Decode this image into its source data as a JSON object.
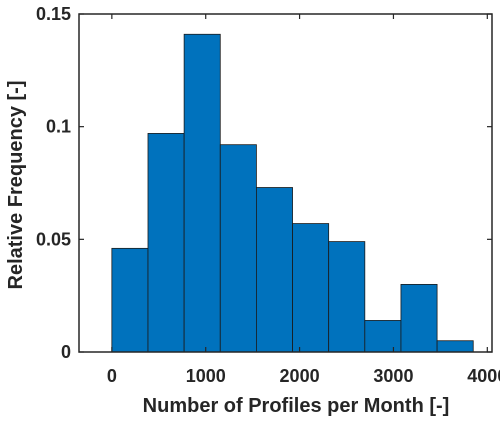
{
  "chart_data": {
    "type": "bar",
    "subtype": "histogram",
    "title": "",
    "xlabel": "Number of Profiles per Month [-]",
    "ylabel": "Relative Frequency [-]",
    "xlim": [
      -350,
      4050
    ],
    "ylim": [
      0,
      0.15
    ],
    "xticks": [
      0,
      1000,
      2000,
      3000,
      4000
    ],
    "xtick_labels": [
      "0",
      "1000",
      "2000",
      "3000",
      "4000"
    ],
    "yticks": [
      0,
      0.05,
      0.1,
      0.15
    ],
    "ytick_labels": [
      "0",
      "0.05",
      "0.1",
      "0.15"
    ],
    "bin_edges": [
      0,
      385,
      770,
      1155,
      1540,
      1925,
      2310,
      2695,
      3080,
      3465,
      3850
    ],
    "values": [
      0.046,
      0.097,
      0.141,
      0.092,
      0.073,
      0.057,
      0.049,
      0.014,
      0.03,
      0.005
    ],
    "grid": false,
    "legend": "none",
    "colors": {
      "bar_fill": "#0072BD",
      "bar_edge": "#1a1a1a",
      "axis": "#262626"
    }
  }
}
